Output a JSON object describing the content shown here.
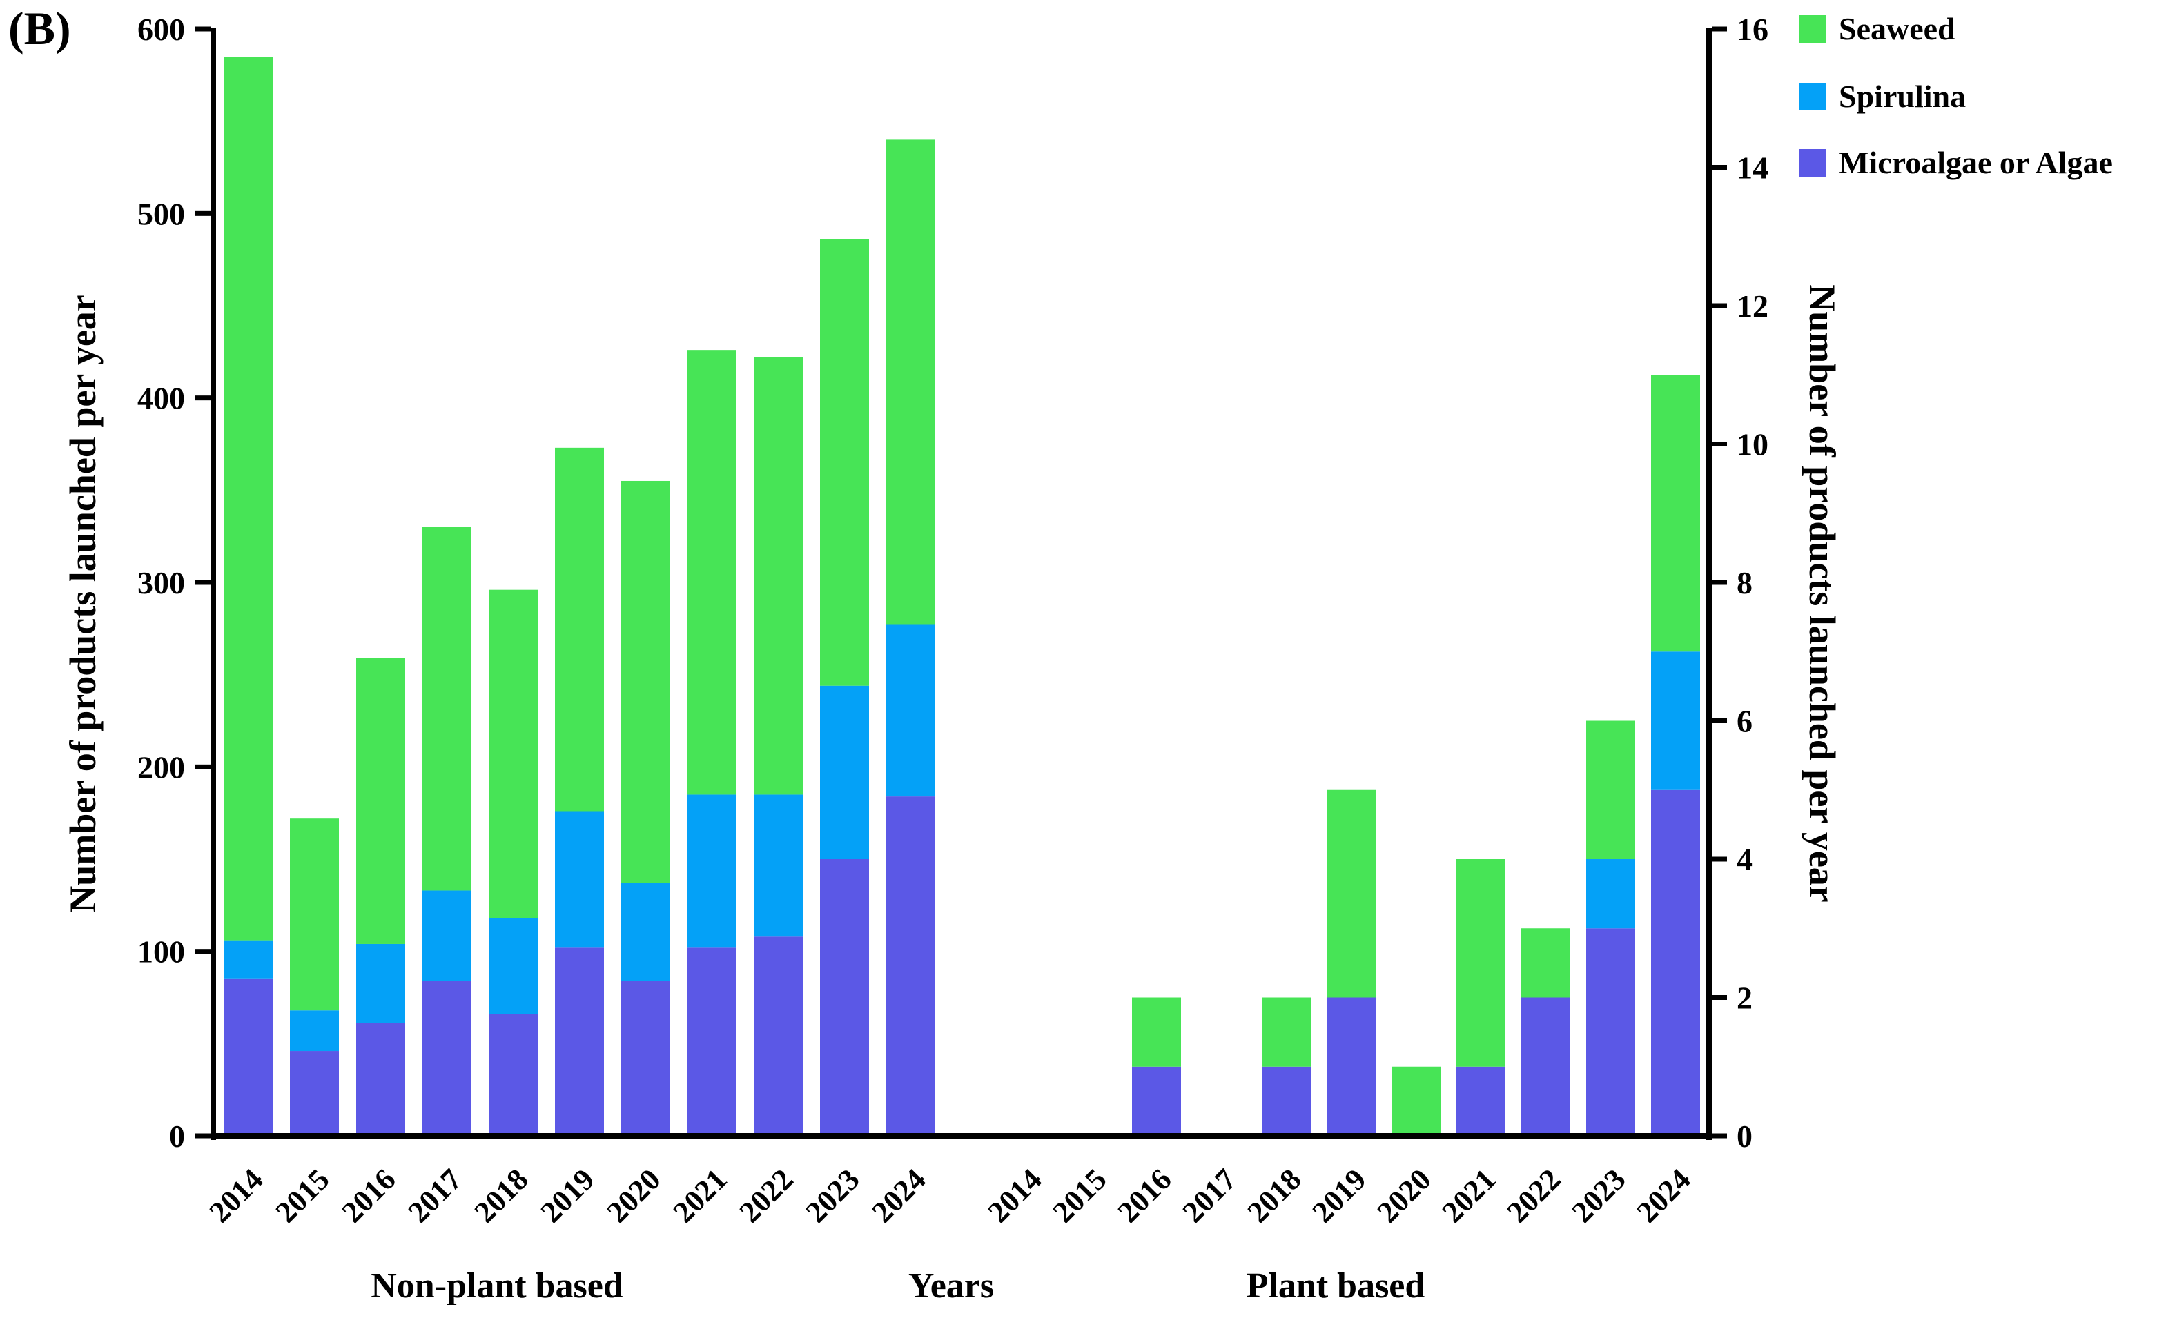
{
  "panel_label": "(B)",
  "left_axis": {
    "title": "Number of products launched per year",
    "ticks": [
      0,
      100,
      200,
      300,
      400,
      500,
      600
    ],
    "range": [
      0,
      600
    ]
  },
  "right_axis": {
    "title": "Number of products launched per year",
    "ticks": [
      0,
      2,
      4,
      6,
      8,
      10,
      12,
      14,
      16
    ],
    "range": [
      0,
      16
    ]
  },
  "x_axis": {
    "years": [
      "2014",
      "2015",
      "2016",
      "2017",
      "2018",
      "2019",
      "2020",
      "2021",
      "2022",
      "2023",
      "2024"
    ],
    "group_labels": {
      "left": "Non-plant based",
      "center": "Years",
      "right": "Plant based"
    }
  },
  "legend": [
    {
      "label": "Seaweed",
      "color": "#47E456"
    },
    {
      "label": "Spirulina",
      "color": "#04A1F7"
    },
    {
      "label": "Microalgae or Algae",
      "color": "#5B58E6"
    }
  ],
  "chart_data": {
    "type": "bar",
    "stacked": true,
    "title": "",
    "xlabel": "Years",
    "ylabel": "Number of products launched per year",
    "legend_position": "upper right",
    "grid": false,
    "groups": [
      {
        "name": "Non-plant based",
        "axis": "left",
        "ylim": [
          0,
          600
        ],
        "categories": [
          "2014",
          "2015",
          "2016",
          "2017",
          "2018",
          "2019",
          "2020",
          "2021",
          "2022",
          "2023",
          "2024"
        ],
        "series": [
          {
            "name": "Microalgae or Algae",
            "color": "#5B58E6",
            "values": [
              85,
              46,
              61,
              84,
              66,
              102,
              84,
              102,
              108,
              150,
              184
            ]
          },
          {
            "name": "Spirulina",
            "color": "#04A1F7",
            "values": [
              21,
              22,
              43,
              49,
              52,
              74,
              53,
              83,
              77,
              94,
              93
            ]
          },
          {
            "name": "Seaweed",
            "color": "#47E456",
            "values": [
              479,
              104,
              155,
              197,
              178,
              197,
              218,
              241,
              237,
              242,
              263
            ]
          }
        ],
        "totals": [
          585,
          172,
          259,
          330,
          296,
          373,
          355,
          426,
          422,
          486,
          540
        ]
      },
      {
        "name": "Plant based",
        "axis": "right",
        "ylim": [
          0,
          16
        ],
        "categories": [
          "2014",
          "2015",
          "2016",
          "2017",
          "2018",
          "2019",
          "2020",
          "2021",
          "2022",
          "2023",
          "2024"
        ],
        "series": [
          {
            "name": "Microalgae or Algae",
            "color": "#5B58E6",
            "values": [
              0,
              0,
              1,
              0,
              1,
              2,
              0,
              1,
              2,
              3,
              5
            ]
          },
          {
            "name": "Spirulina",
            "color": "#04A1F7",
            "values": [
              0,
              0,
              0,
              0,
              0,
              0,
              0,
              0,
              0,
              1,
              2
            ]
          },
          {
            "name": "Seaweed",
            "color": "#47E456",
            "values": [
              0,
              0,
              1,
              0,
              1,
              3,
              1,
              3,
              1,
              2,
              4
            ]
          }
        ],
        "totals": [
          0,
          0,
          2,
          0,
          2,
          5,
          1,
          4,
          3,
          6,
          11
        ]
      }
    ]
  }
}
